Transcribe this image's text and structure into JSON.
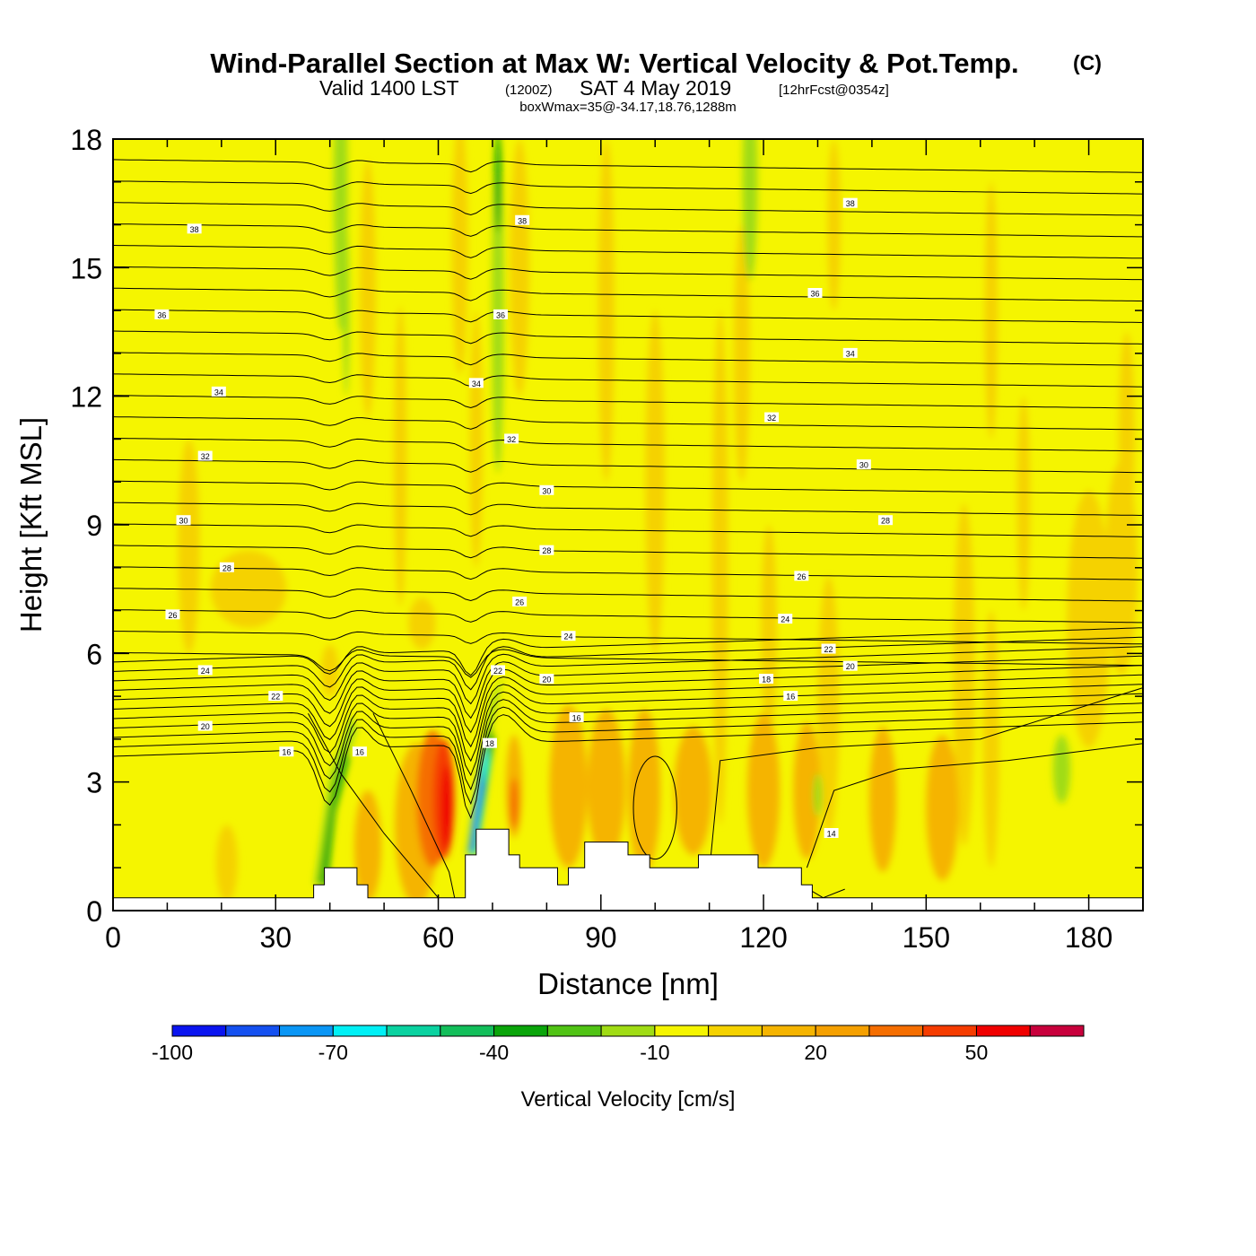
{
  "title": {
    "main": "Wind-Parallel Section at Max W: Vertical Velocity & Pot.Temp.",
    "copyright": "(C)",
    "valid_prefix": "Valid 1400 LST",
    "valid_utc": "(1200Z)",
    "valid_date": "SAT 4 May 2019",
    "forecast": "[12hrFcst@0354z]",
    "box_info": "boxWmax=35@-34.17,18.76,1288m"
  },
  "chart_data": {
    "type": "heatmap",
    "title": "Wind-Parallel Section at Max W: Vertical Velocity & Pot.Temp.",
    "xlabel": "Distance [nm]",
    "ylabel": "Height [Kft MSL]",
    "xlim": [
      0,
      190
    ],
    "ylim": [
      0,
      18
    ],
    "x_ticks": [
      0,
      30,
      60,
      90,
      120,
      150,
      180
    ],
    "y_ticks": [
      0,
      3,
      6,
      9,
      12,
      15,
      18
    ],
    "background_value_range": "-10 to 0 cm/s",
    "vertical_velocity_features": [
      {
        "name": "strong updraft",
        "x_center": 61,
        "z_range": [
          1.2,
          4.2
        ],
        "max_value": 55
      },
      {
        "name": "strong downdraft",
        "x_center": 68,
        "z_range": [
          1.3,
          4.0
        ],
        "min_value": -80
      },
      {
        "name": "downdraft lee slope",
        "x_center": 41,
        "z_range": [
          0.3,
          4.5
        ],
        "min_value": -40
      },
      {
        "name": "upper downdraft column",
        "x_center": 71,
        "z_range": [
          10.2,
          18
        ],
        "min_value": -30
      },
      {
        "name": "upper downdraft column",
        "x_center": 44,
        "z_range": [
          12.2,
          18
        ],
        "min_value": -20
      },
      {
        "name": "upper downdraft column",
        "x_center": 118,
        "z_range": [
          14.6,
          18
        ],
        "min_value": -20
      },
      {
        "name": "weak downdraft",
        "x_center": 174,
        "z_range": [
          2.5,
          4.1
        ],
        "min_value": -20
      }
    ],
    "theta_contour_labels": [
      "14",
      "16",
      "18",
      "20",
      "22",
      "24",
      "26",
      "28",
      "30",
      "32",
      "34",
      "36",
      "38"
    ],
    "theta_contour_units": "Pot.Temp. (C)",
    "terrain_profile": {
      "x": [
        0,
        37,
        37,
        39,
        39,
        45,
        45,
        47,
        47,
        65,
        65,
        67,
        67,
        73,
        73,
        75,
        75,
        82,
        82,
        84,
        84,
        87,
        87,
        95,
        95,
        99,
        99,
        108,
        108,
        119,
        119,
        127,
        127,
        129,
        129,
        190
      ],
      "z": [
        0.3,
        0.3,
        0.6,
        0.6,
        1.0,
        1.0,
        0.6,
        0.6,
        0.3,
        0.3,
        1.3,
        1.3,
        1.9,
        1.9,
        1.3,
        1.3,
        1.0,
        1.0,
        0.6,
        0.6,
        1.0,
        1.0,
        1.6,
        1.6,
        1.3,
        1.3,
        1.0,
        1.0,
        1.3,
        1.3,
        1.0,
        1.0,
        0.6,
        0.6,
        0.3,
        0.3
      ]
    },
    "colorbar": {
      "label": "Vertical Velocity [cm/s]",
      "tick_labels": [
        "-100",
        "-70",
        "-40",
        "-10",
        "20",
        "50"
      ],
      "tick_values": [
        -100,
        -70,
        -40,
        -10,
        20,
        50
      ],
      "bounds": [
        -100,
        70
      ],
      "colors": [
        "#0a14f0",
        "#1450f0",
        "#0a96f5",
        "#00f0f5",
        "#0ad2a0",
        "#12be5a",
        "#0aa50a",
        "#50c314",
        "#a0dc14",
        "#f5f500",
        "#f5d200",
        "#f5b400",
        "#f5a000",
        "#f56e00",
        "#f53c00",
        "#f00000",
        "#c8003c"
      ]
    }
  }
}
